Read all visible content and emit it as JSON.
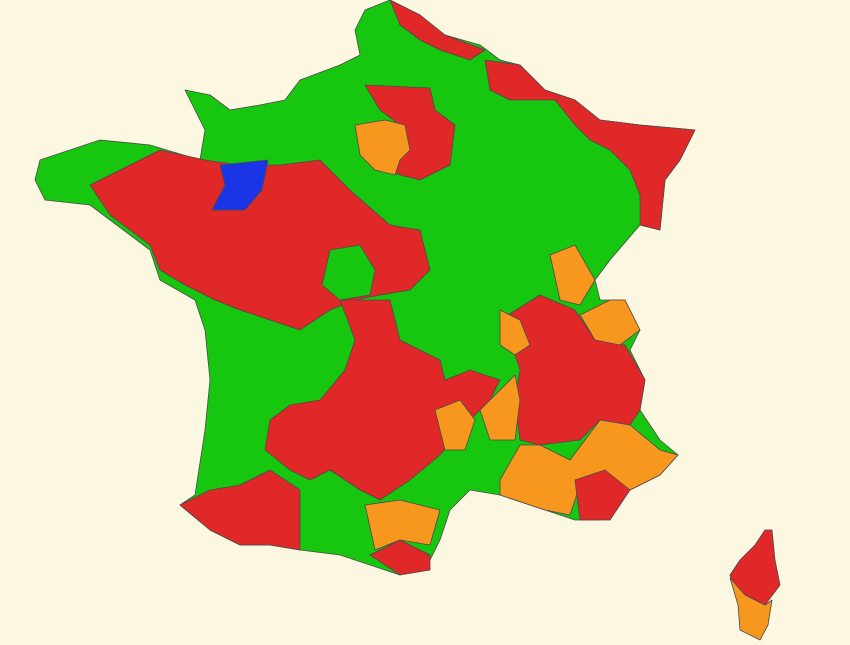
{
  "map": {
    "background": "#FBF7E1",
    "category_colors": {
      "green": "#17C70F",
      "red": "#E02828",
      "orange": "#F7971E",
      "blue": "#1A35E6"
    },
    "border_color": "#4a4a4a"
  }
}
